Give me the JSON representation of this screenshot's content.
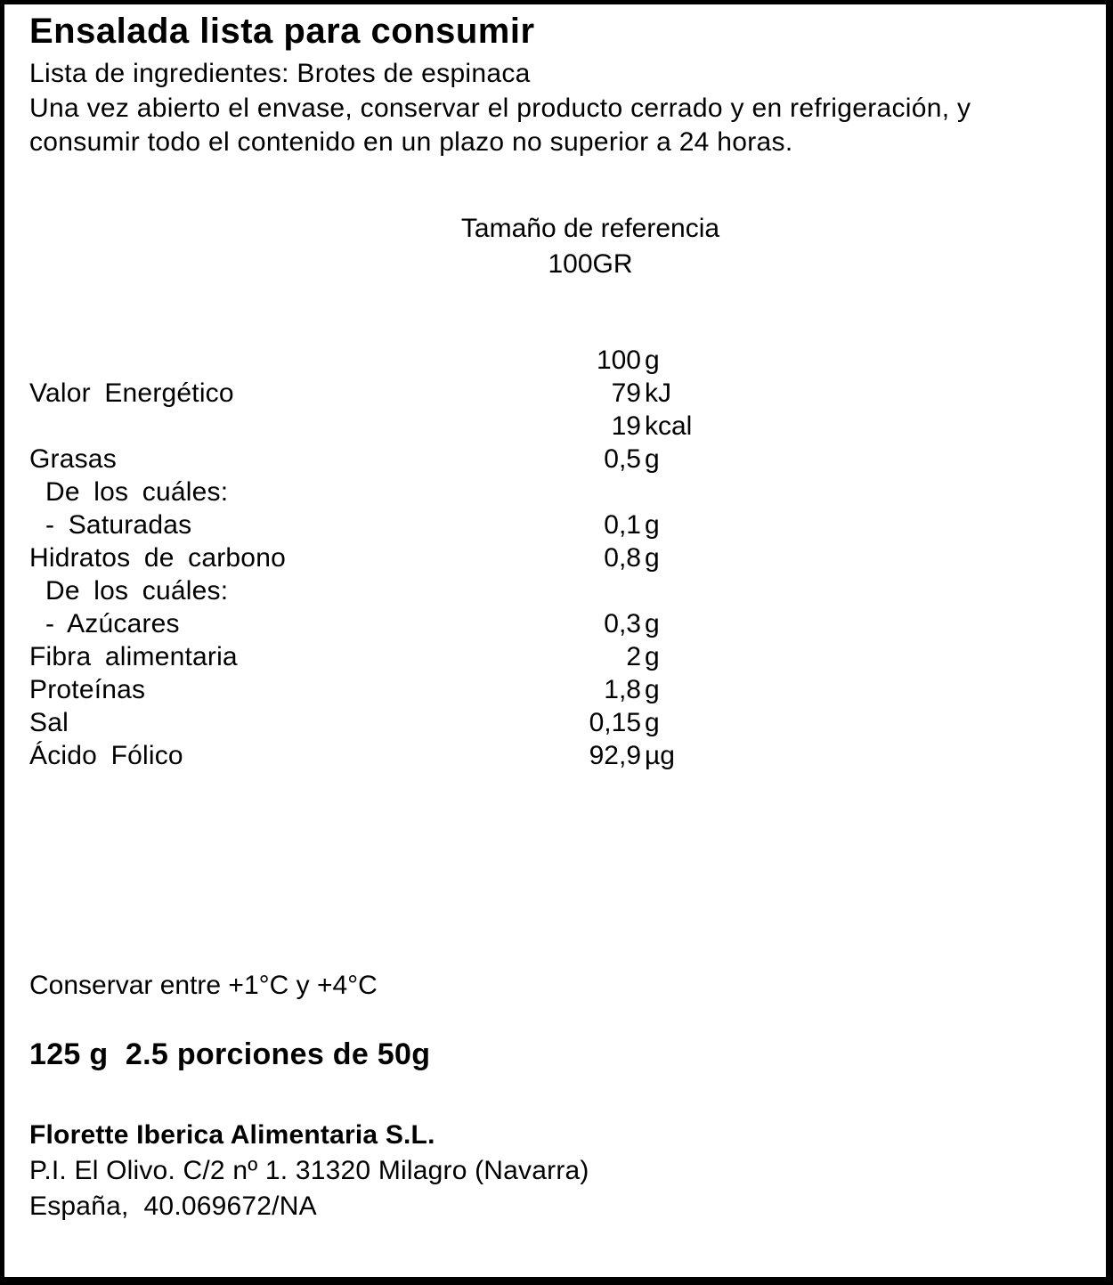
{
  "label": {
    "title": "Ensalada lista para consumir",
    "ingredients": "Lista de ingredientes: Brotes de espinaca",
    "open_note": "Una vez abierto el envase, conservar el producto cerrado y en refrigeración, y consumir todo el contenido en un plazo no superior a 24 horas."
  },
  "nutrition": {
    "reference_title": "Tamaño de referencia",
    "reference_size": "100GR",
    "column_header": {
      "number": "100",
      "unit": "g"
    },
    "rows": [
      {
        "label": "Valor Energético",
        "number": "79",
        "unit": "kJ"
      },
      {
        "label": "",
        "number": "19",
        "unit": "kcal"
      },
      {
        "label": "Grasas",
        "number": "0,5",
        "unit": "g"
      },
      {
        "label": "De los cuáles:",
        "number": "",
        "unit": ""
      },
      {
        "label": "- Saturadas",
        "number": "0,1",
        "unit": "g"
      },
      {
        "label": "Hidratos de carbono",
        "number": "0,8",
        "unit": "g"
      },
      {
        "label": "De los cuáles:",
        "number": "",
        "unit": ""
      },
      {
        "label": "- Azúcares",
        "number": "0,3",
        "unit": "g"
      },
      {
        "label": "Fibra alimentaria",
        "number": "2",
        "unit": "g"
      },
      {
        "label": "Proteínas",
        "number": "1,8",
        "unit": "g"
      },
      {
        "label": "Sal",
        "number": "0,15",
        "unit": "g"
      },
      {
        "label": "Ácido Fólico",
        "number": "92,9",
        "unit": "µg"
      }
    ]
  },
  "storage": {
    "temperature_note": "Conservar entre +1°C y +4°C"
  },
  "net_weight": {
    "text": "125 g  2.5 porciones de 50g"
  },
  "manufacturer": {
    "name": "Florette Iberica Alimentaria S.L.",
    "address": "P.I. El Olivo. C/2 nº 1. 31320 Milagro (Navarra)",
    "registration": "España,  40.069672/NA"
  }
}
